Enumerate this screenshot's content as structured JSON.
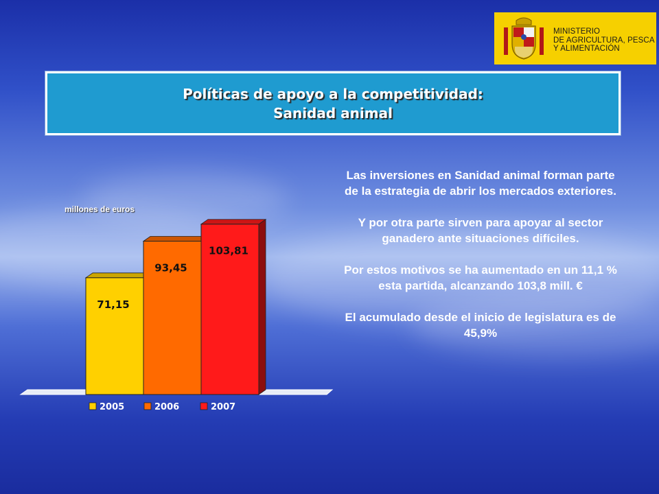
{
  "logo": {
    "line1": "MINISTERIO",
    "line2": "DE AGRICULTURA, PESCA",
    "line3": "Y ALIMENTACIÓN",
    "background": "#f6d000"
  },
  "title": {
    "line1": "Políticas de apoyo a la competitividad:",
    "line2": "Sanidad animal",
    "background": "#1f9bd0"
  },
  "chart_data": {
    "type": "bar",
    "unit_label": "millones de euros",
    "categories": [
      "2005",
      "2006",
      "2007"
    ],
    "values": [
      71.15,
      93.45,
      103.81
    ],
    "value_labels": [
      "71,15",
      "93,45",
      "103,81"
    ],
    "colors": [
      "#ffd000",
      "#ff6a00",
      "#ff1a1a"
    ],
    "ylim": [
      0,
      120
    ],
    "legend": [
      "2005",
      "2006",
      "2007"
    ],
    "legend_position": "bottom",
    "grid": false,
    "style": "3d"
  },
  "body": {
    "p1": "Las inversiones en Sanidad animal forman parte de la estrategia de abrir los mercados exteriores.",
    "p2": "Y por otra parte sirven para apoyar al sector ganadero ante situaciones difíciles.",
    "p3": "Por estos motivos se ha aumentado en un 11,1 % esta partida, alcanzando 103,8 mill. €",
    "p4": "El acumulado desde el inicio de legislatura es de 45,9%"
  }
}
